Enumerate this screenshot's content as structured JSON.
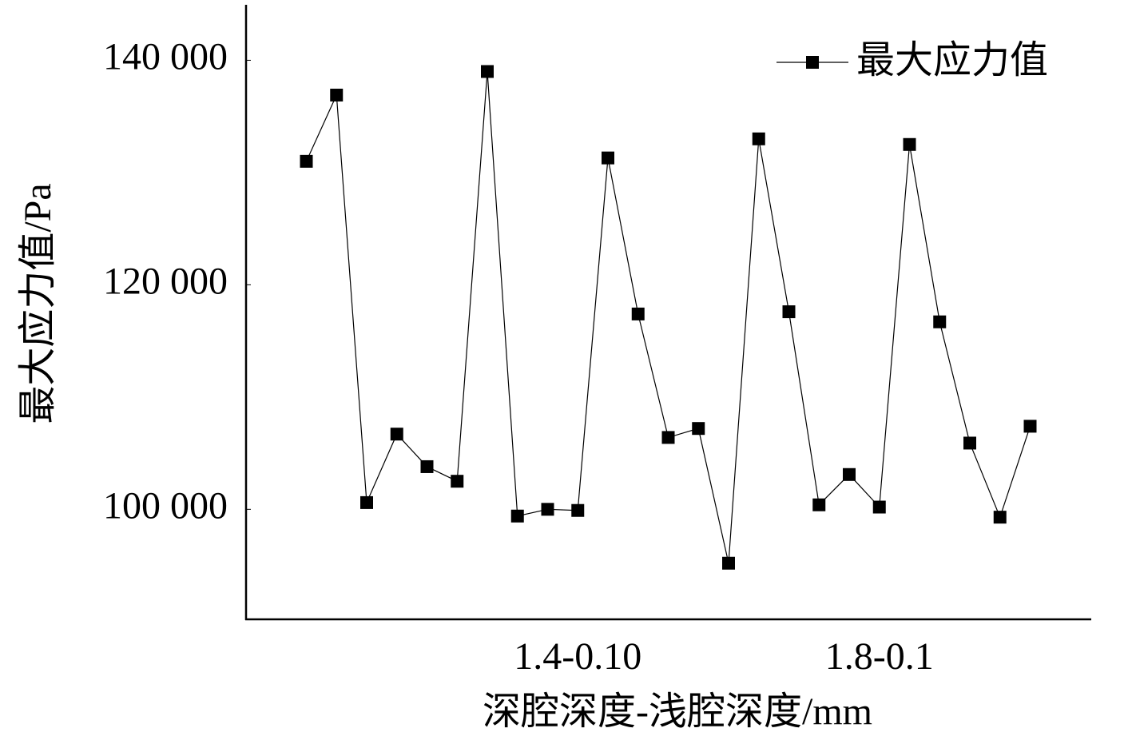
{
  "chart_data": {
    "type": "line",
    "x_label": "深腔深度-浅腔深度/mm",
    "y_label": "最大应力值/Pa",
    "categories": [
      null,
      null,
      null,
      null,
      null,
      null,
      null,
      null,
      null,
      "1.4-0.10",
      null,
      null,
      null,
      null,
      null,
      null,
      null,
      null,
      null,
      "1.8-0.1",
      null,
      null,
      null,
      null,
      null
    ],
    "series": [
      {
        "name": "最大应力值",
        "color": "#000000",
        "values": [
          131000,
          136900,
          100600,
          106700,
          103800,
          102500,
          139000,
          99400,
          100000,
          99900,
          131300,
          117400,
          106400,
          107200,
          95200,
          133000,
          117600,
          100400,
          103100,
          100200,
          132500,
          116700,
          105900,
          99300,
          107400
        ]
      }
    ],
    "ylim": [
      90200,
      144800
    ],
    "yticks": [
      {
        "value": 100000,
        "label": "100 000"
      },
      {
        "value": 120000,
        "label": "120 000"
      },
      {
        "value": 140000,
        "label": "140 000"
      }
    ],
    "grid": false,
    "legend": "top-right"
  }
}
